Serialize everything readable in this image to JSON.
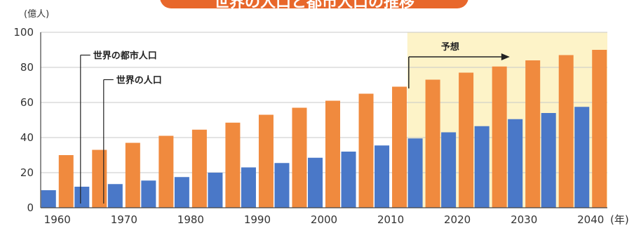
{
  "chart_data": {
    "type": "bar",
    "title": "世界の人口と都市人口の推移",
    "y_unit": "(億人)",
    "x_unit": "(年)",
    "ylim": [
      0,
      100
    ],
    "y_ticks": [
      0,
      20,
      40,
      60,
      80,
      100
    ],
    "x_tick_labels": [
      "1960",
      "1970",
      "1980",
      "1990",
      "2000",
      "2010",
      "2020",
      "2030",
      "2040"
    ],
    "categories": [
      1960,
      1965,
      1970,
      1975,
      1980,
      1985,
      1990,
      1995,
      2000,
      2005,
      2010,
      2015,
      2020,
      2025,
      2030,
      2035,
      2040
    ],
    "series": [
      {
        "name": "世界の都市人口",
        "color": "#4a78c8",
        "values": [
          10,
          12,
          13.5,
          15.5,
          17.5,
          20,
          23,
          25.5,
          28.5,
          32,
          35.5,
          39.5,
          43,
          46.5,
          50.5,
          54,
          57.5
        ]
      },
      {
        "name": "世界の人口",
        "color": "#f08a3e",
        "values": [
          30,
          33,
          37,
          41,
          44.5,
          48.5,
          53,
          57,
          61,
          65,
          69,
          73,
          77,
          80.5,
          84,
          87,
          90
        ]
      }
    ],
    "forecast": {
      "label": "予想",
      "from_year": 2015,
      "color": "#fdf3c8"
    },
    "grid": true
  }
}
